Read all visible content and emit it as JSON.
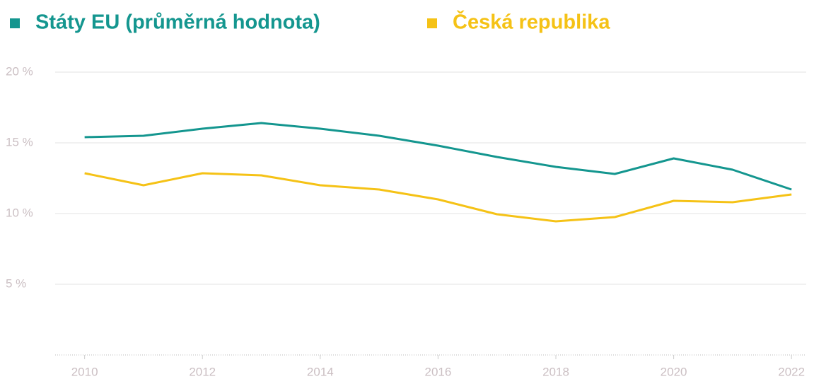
{
  "chart_data": {
    "type": "line",
    "x": [
      2010,
      2011,
      2012,
      2013,
      2014,
      2015,
      2016,
      2017,
      2018,
      2019,
      2020,
      2021,
      2022
    ],
    "series": [
      {
        "name": "Státy EU (průměrná hodnota)",
        "color": "#14968f",
        "values": [
          15.4,
          15.5,
          16.0,
          16.4,
          16.0,
          15.5,
          14.8,
          14.0,
          13.3,
          12.8,
          13.9,
          13.1,
          11.7
        ]
      },
      {
        "name": "Česká republika",
        "color": "#f5c216",
        "values": [
          12.85,
          12.0,
          12.85,
          12.7,
          12.0,
          11.7,
          11.0,
          9.95,
          9.45,
          9.75,
          10.9,
          10.8,
          11.35
        ]
      }
    ],
    "xlim": [
      2009.5,
      2022.25
    ],
    "xticks": [
      2010,
      2012,
      2014,
      2016,
      2018,
      2020,
      2022
    ],
    "ylim": [
      0,
      20
    ],
    "yticks": [
      {
        "value": 5,
        "label": "5 %"
      },
      {
        "value": 10,
        "label": "10 %"
      },
      {
        "value": 15,
        "label": "15 %"
      },
      {
        "value": 20,
        "label": "20 %"
      }
    ],
    "grid": true
  }
}
